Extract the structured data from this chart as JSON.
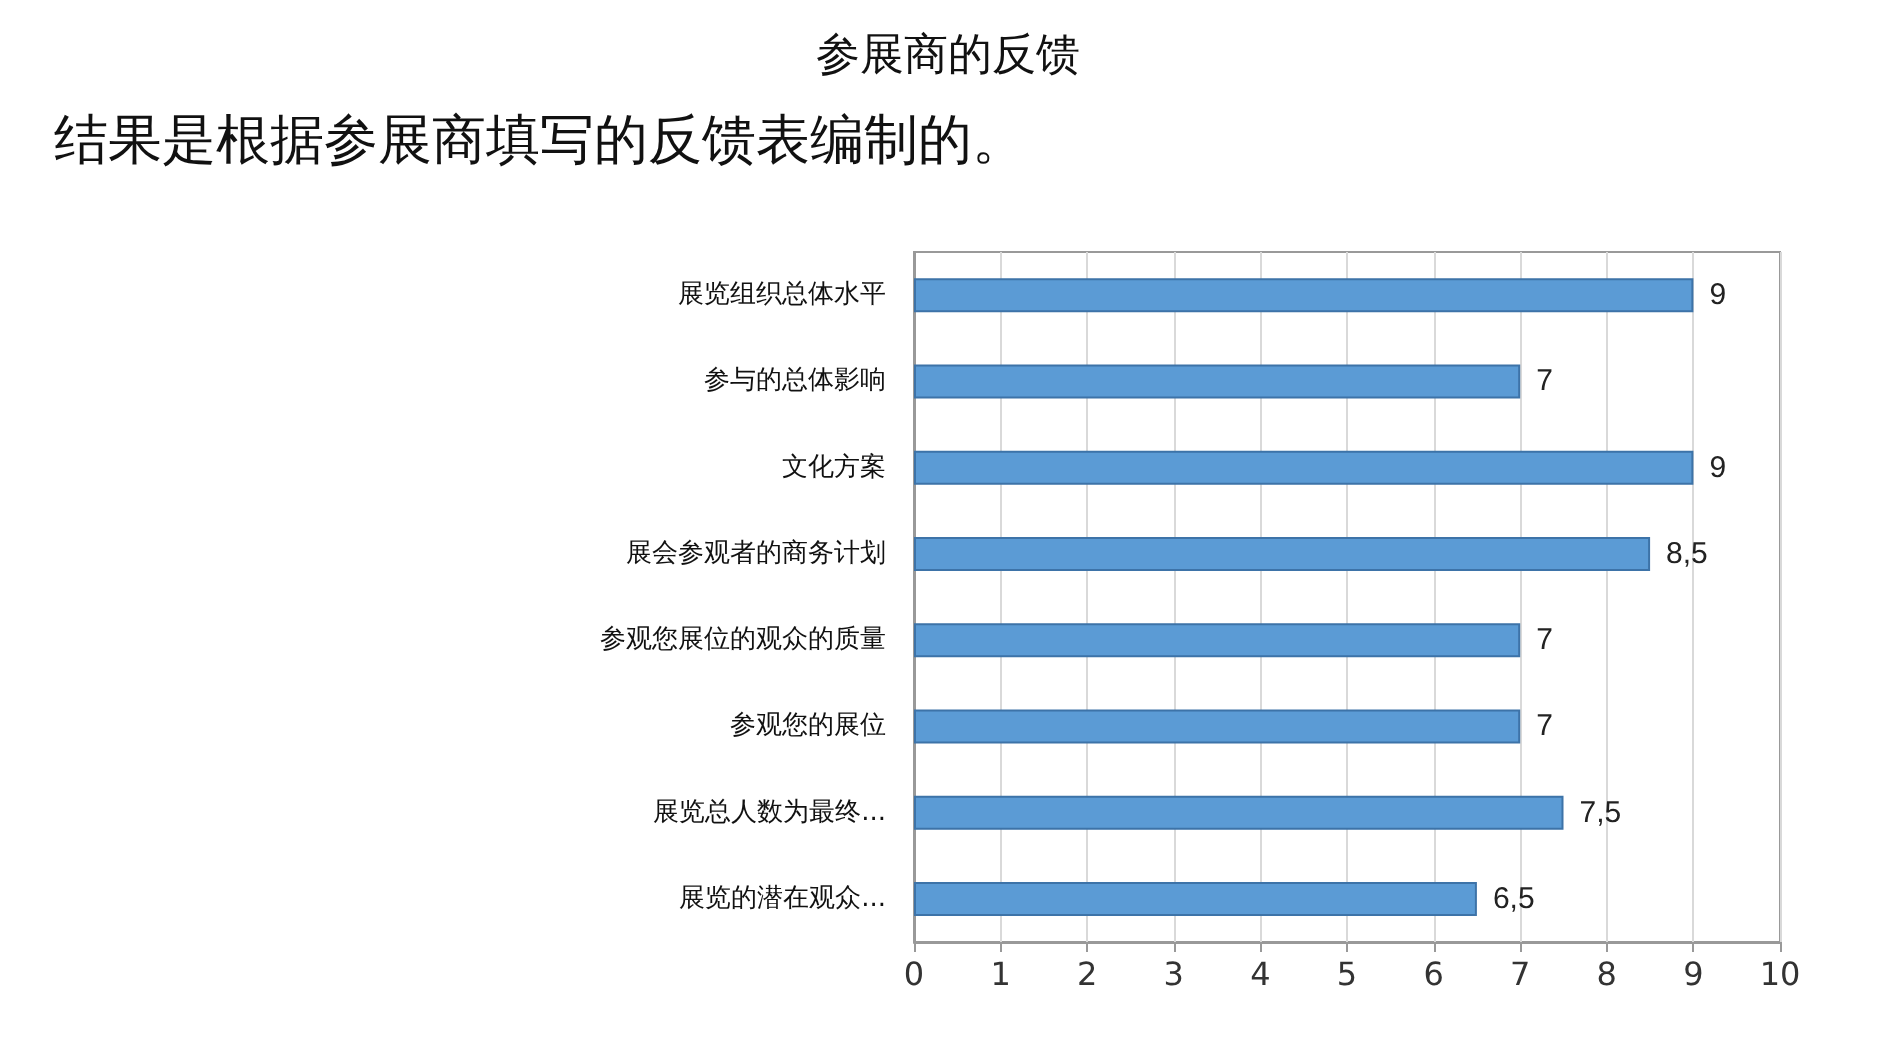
{
  "chart_data": {
    "type": "bar",
    "orientation": "horizontal",
    "title": "参展商的反馈",
    "subtitle": "结果是根据参展商填写的反馈表编制的。",
    "categories": [
      "展览组织总体水平",
      "参与的总体影响",
      "文化方案",
      "展会参观者的商务计划",
      "参观您展位的观众的质量",
      "参观您的展位",
      "展览总人数为最终...",
      "展览的潜在观众..."
    ],
    "values": [
      9,
      7,
      9,
      8.5,
      7,
      7,
      7.5,
      6.5
    ],
    "value_labels": [
      "9",
      "7",
      "9",
      "8,5",
      "7",
      "7",
      "7,5",
      "6,5"
    ],
    "color": "#5b9bd5",
    "xlim": [
      0,
      10
    ],
    "xticks": [
      0,
      1,
      2,
      3,
      4,
      5,
      6,
      7,
      8,
      9,
      10
    ],
    "grid": "x"
  }
}
